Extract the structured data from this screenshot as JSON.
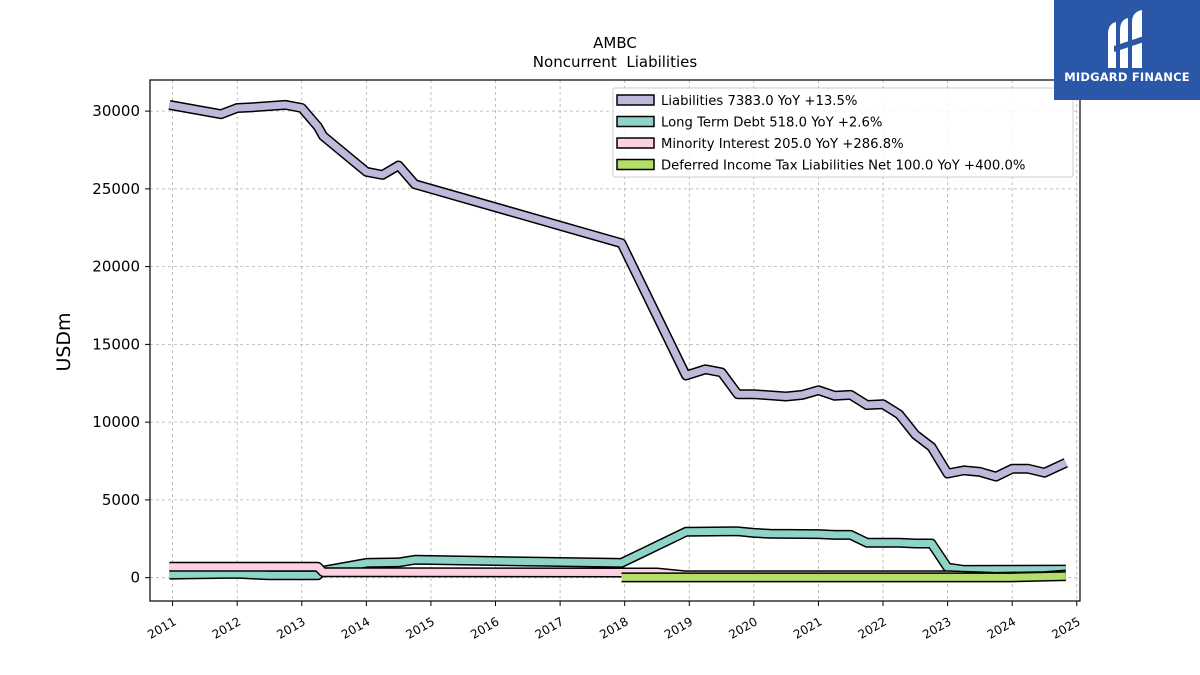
{
  "brand": {
    "name": "MIDGARD FINANCE",
    "bg_color": "#2b57a8"
  },
  "chart_data": {
    "type": "area",
    "title": "AMBC",
    "subtitle": "Noncurrent  Liabilities",
    "ylabel": "USDm",
    "xlabel": "",
    "ylim": [
      -1500,
      32000
    ],
    "xlim": [
      2010.65,
      2025.05
    ],
    "x_ticks": [
      "2011",
      "2012",
      "2013",
      "2014",
      "2015",
      "2016",
      "2017",
      "2018",
      "2019",
      "2020",
      "2021",
      "2022",
      "2023",
      "2024",
      "2025"
    ],
    "y_ticks": [
      "0",
      "5000",
      "10000",
      "15000",
      "20000",
      "25000",
      "30000"
    ],
    "grid": true,
    "legend_position": "top-right",
    "series": [
      {
        "name": "Liabilities",
        "legend": "Liabilities  7383.0 YoY +13.5%",
        "color": "#bcb9da",
        "points": [
          [
            2010.95,
            30400
          ],
          [
            2011.75,
            29800
          ],
          [
            2012.0,
            30200
          ],
          [
            2012.25,
            30250
          ],
          [
            2012.75,
            30400
          ],
          [
            2013.0,
            30200
          ],
          [
            2013.25,
            29000
          ],
          [
            2013.33,
            28400
          ],
          [
            2014.0,
            26100
          ],
          [
            2014.25,
            25900
          ],
          [
            2014.5,
            26500
          ],
          [
            2014.75,
            25300
          ],
          [
            2017.95,
            21500
          ],
          [
            2018.95,
            13000
          ],
          [
            2019.25,
            13400
          ],
          [
            2019.5,
            13200
          ],
          [
            2019.75,
            11800
          ],
          [
            2020.0,
            11800
          ],
          [
            2020.5,
            11650
          ],
          [
            2020.75,
            11750
          ],
          [
            2021.0,
            12050
          ],
          [
            2021.25,
            11700
          ],
          [
            2021.5,
            11750
          ],
          [
            2021.75,
            11100
          ],
          [
            2022.0,
            11150
          ],
          [
            2022.25,
            10500
          ],
          [
            2022.5,
            9200
          ],
          [
            2022.75,
            8400
          ],
          [
            2023.0,
            6700
          ],
          [
            2023.25,
            6900
          ],
          [
            2023.5,
            6800
          ],
          [
            2023.75,
            6500
          ],
          [
            2024.0,
            7000
          ],
          [
            2024.25,
            7000
          ],
          [
            2024.5,
            6750
          ],
          [
            2024.83,
            7383
          ]
        ]
      },
      {
        "name": "Long Term Debt",
        "legend": "Long Term Debt  518.0 YoY +2.6%",
        "color": "#8dd3c7",
        "points": [
          [
            2010.95,
            200
          ],
          [
            2012.0,
            250
          ],
          [
            2012.5,
            150
          ],
          [
            2013.25,
            150
          ],
          [
            2013.33,
            450
          ],
          [
            2014.0,
            950
          ],
          [
            2014.5,
            980
          ],
          [
            2014.75,
            1150
          ],
          [
            2017.95,
            950
          ],
          [
            2018.95,
            2950
          ],
          [
            2019.75,
            2980
          ],
          [
            2020.0,
            2880
          ],
          [
            2020.25,
            2820
          ],
          [
            2021.0,
            2800
          ],
          [
            2021.25,
            2750
          ],
          [
            2021.5,
            2750
          ],
          [
            2021.75,
            2250
          ],
          [
            2022.0,
            2250
          ],
          [
            2022.25,
            2250
          ],
          [
            2022.5,
            2200
          ],
          [
            2022.75,
            2200
          ],
          [
            2023.0,
            650
          ],
          [
            2023.25,
            500
          ],
          [
            2024.0,
            510
          ],
          [
            2024.83,
            518
          ]
        ]
      },
      {
        "name": "Minority Interest",
        "legend": "Minority Interest  205.0 YoY +286.8%",
        "color": "#fdd0e2",
        "points": [
          [
            2010.95,
            700
          ],
          [
            2013.25,
            700
          ],
          [
            2013.33,
            350
          ],
          [
            2018.5,
            330
          ],
          [
            2018.95,
            150
          ],
          [
            2023.0,
            150
          ],
          [
            2023.75,
            50
          ],
          [
            2024.5,
            100
          ],
          [
            2024.83,
            205
          ]
        ]
      },
      {
        "name": "Deferred Income Tax Liabilities Net",
        "legend": "Deferred Income Tax Liabilities Net  100.0 YoY +400.0%",
        "color": "#b3de69",
        "points": [
          [
            2017.95,
            20
          ],
          [
            2024.0,
            20
          ],
          [
            2024.83,
            100
          ]
        ]
      }
    ]
  }
}
